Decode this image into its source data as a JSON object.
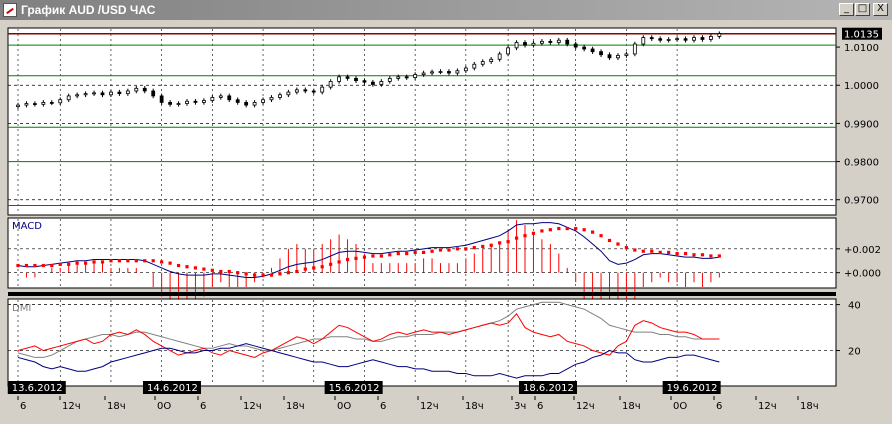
{
  "window": {
    "title": "График AUD /USD  ЧАС",
    "buttons": {
      "minimize": "_",
      "maximize": "□",
      "close": "X"
    }
  },
  "colors": {
    "price_level": "#8b0000",
    "gridline_green": "#008000",
    "candle": "#000000",
    "macd_line": "#000080",
    "signal_dots": "#ff0000",
    "histogram": "#ff0000",
    "dmi_adx": "#808080",
    "dmi_plus": "#ff0000",
    "dmi_minus": "#000080",
    "price_tag_bg": "#000000",
    "price_tag_text": "#ffffff"
  },
  "chart_data": [
    {
      "type": "candlestick",
      "symbol": "AUD/USD",
      "timeframe": "ЧАС",
      "y_ticks": [
        "1.0100",
        "1.0000",
        "0.9900",
        "0.9800",
        "0.9700"
      ],
      "ylim": [
        0.966,
        1.015
      ],
      "current_price": "1.0135",
      "closes": [
        0.9948,
        0.9952,
        0.995,
        0.9955,
        0.9954,
        0.9962,
        0.9972,
        0.9975,
        0.9978,
        0.998,
        0.9975,
        0.9982,
        0.9978,
        0.9985,
        0.9992,
        0.9985,
        0.9972,
        0.9955,
        0.995,
        0.9952,
        0.9958,
        0.9955,
        0.996,
        0.9968,
        0.9972,
        0.9962,
        0.9955,
        0.9948,
        0.9955,
        0.9962,
        0.9968,
        0.9975,
        0.9982,
        0.9988,
        0.9985,
        0.9982,
        0.9995,
        1.001,
        1.0022,
        1.0018,
        1.0012,
        1.0008,
        1.0002,
        1.001,
        1.0018,
        1.0022,
        1.002,
        1.0028,
        1.0032,
        1.0035,
        1.0036,
        1.0032,
        1.0038,
        1.0045,
        1.0055,
        1.0062,
        1.0068,
        1.0082,
        1.0098,
        1.0112,
        1.0105,
        1.011,
        1.0115,
        1.0112,
        1.0118,
        1.0108,
        1.01,
        1.0095,
        1.0088,
        1.008,
        1.0072,
        1.0078,
        1.0082,
        1.0108,
        1.0125,
        1.0122,
        1.0118,
        1.012,
        1.0122,
        1.0118,
        1.0125,
        1.012,
        1.0128,
        1.0135
      ],
      "date_labels": [
        "13.6.2012",
        "14.6.2012",
        "15.6.2012",
        "18.6.2012",
        "19.6.2012"
      ],
      "time_ticks": [
        "6",
        "12ч",
        "18ч",
        "0О",
        "6",
        "12ч",
        "18ч",
        "0О",
        "6",
        "12ч",
        "18ч",
        "3ч",
        "6",
        "12ч",
        "18ч",
        "0О",
        "6",
        "12ч",
        "18ч"
      ]
    },
    {
      "type": "line",
      "name": "MACD",
      "y_ticks": [
        "+0.002",
        "+0.000"
      ],
      "ylim": [
        -0.0012,
        0.0045
      ],
      "macd": [
        0.0006,
        0.0005,
        0.0005,
        0.0006,
        0.0007,
        0.0008,
        0.0009,
        0.001,
        0.001,
        0.0011,
        0.0011,
        0.0011,
        0.0011,
        0.0011,
        0.0011,
        0.001,
        0.0007,
        0.0004,
        0.0001,
        -0.0001,
        -0.0002,
        -0.0002,
        -0.0002,
        -0.0001,
        -0.0001,
        -0.0002,
        -0.0003,
        -0.0004,
        -0.0004,
        -0.0003,
        -0.0001,
        0.0002,
        0.0005,
        0.0007,
        0.0008,
        0.0009,
        0.0011,
        0.0014,
        0.0017,
        0.0018,
        0.0018,
        0.0017,
        0.0016,
        0.0016,
        0.0017,
        0.0018,
        0.0018,
        0.0019,
        0.002,
        0.0021,
        0.0021,
        0.0021,
        0.0022,
        0.0023,
        0.0025,
        0.0027,
        0.0029,
        0.0031,
        0.0035,
        0.004,
        0.0041,
        0.0041,
        0.0042,
        0.0042,
        0.0041,
        0.0038,
        0.0035,
        0.003,
        0.0024,
        0.0018,
        0.001,
        0.0007,
        0.0008,
        0.0011,
        0.0015,
        0.0016,
        0.0016,
        0.0015,
        0.0014,
        0.0013,
        0.0013,
        0.0012,
        0.0012,
        0.0013
      ],
      "signal": [
        0.0006,
        0.0006,
        0.0006,
        0.0006,
        0.0006,
        0.0007,
        0.0007,
        0.0008,
        0.0008,
        0.0009,
        0.0009,
        0.001,
        0.001,
        0.001,
        0.001,
        0.001,
        0.001,
        0.0009,
        0.0008,
        0.0006,
        0.0005,
        0.0004,
        0.0003,
        0.0002,
        0.0001,
        0.0001,
        0.0,
        -0.0001,
        -0.0002,
        -0.0002,
        -0.0002,
        -0.0001,
        0.0,
        0.0001,
        0.0003,
        0.0004,
        0.0005,
        0.0007,
        0.0009,
        0.0011,
        0.0012,
        0.0013,
        0.0014,
        0.0014,
        0.0015,
        0.0016,
        0.0016,
        0.0017,
        0.0017,
        0.0018,
        0.0019,
        0.0019,
        0.002,
        0.002,
        0.0021,
        0.0022,
        0.0023,
        0.0025,
        0.0026,
        0.0029,
        0.0031,
        0.0033,
        0.0035,
        0.0036,
        0.0037,
        0.0037,
        0.0037,
        0.0036,
        0.0034,
        0.0031,
        0.0027,
        0.0024,
        0.0021,
        0.0019,
        0.0018,
        0.0018,
        0.0017,
        0.0017,
        0.0016,
        0.0016,
        0.0015,
        0.0015,
        0.0014,
        0.0014
      ]
    },
    {
      "type": "line",
      "name": "DMI",
      "y_ticks": [
        "40",
        "20"
      ],
      "ylim": [
        5,
        42
      ],
      "adx": [
        19,
        18,
        17,
        17,
        18,
        20,
        22,
        24,
        25,
        26,
        27,
        27,
        26,
        27,
        28,
        28,
        27,
        26,
        25,
        24,
        23,
        22,
        21,
        21,
        22,
        23,
        22,
        22,
        21,
        20,
        20,
        21,
        22,
        23,
        24,
        25,
        25,
        26,
        26,
        26,
        25,
        25,
        24,
        24,
        25,
        26,
        26,
        27,
        27,
        27,
        28,
        28,
        28,
        29,
        30,
        31,
        32,
        33,
        35,
        38,
        39,
        40,
        41,
        41,
        41,
        40,
        39,
        38,
        36,
        34,
        31,
        30,
        29,
        28,
        28,
        28,
        27,
        27,
        26,
        26,
        25,
        25,
        25,
        25
      ],
      "plus_di": [
        20,
        21,
        22,
        20,
        21,
        22,
        23,
        24,
        25,
        23,
        24,
        27,
        28,
        27,
        29,
        27,
        24,
        22,
        20,
        18,
        19,
        20,
        21,
        19,
        18,
        20,
        19,
        18,
        17,
        19,
        20,
        22,
        24,
        26,
        25,
        23,
        25,
        28,
        31,
        30,
        28,
        26,
        24,
        25,
        27,
        28,
        27,
        28,
        29,
        28,
        28,
        27,
        28,
        29,
        30,
        31,
        32,
        31,
        32,
        36,
        30,
        28,
        27,
        26,
        27,
        24,
        23,
        22,
        20,
        19,
        18,
        22,
        24,
        31,
        33,
        32,
        30,
        29,
        28,
        28,
        27,
        25,
        25,
        25
      ],
      "minus_di": [
        17,
        16,
        15,
        13,
        12,
        13,
        12,
        11,
        11,
        12,
        13,
        15,
        16,
        17,
        18,
        19,
        20,
        21,
        21,
        20,
        19,
        19,
        20,
        20,
        21,
        21,
        22,
        23,
        22,
        21,
        20,
        19,
        18,
        17,
        16,
        15,
        15,
        14,
        13,
        13,
        14,
        15,
        16,
        15,
        14,
        13,
        13,
        12,
        12,
        11,
        11,
        11,
        10,
        10,
        9,
        9,
        9,
        10,
        9,
        8,
        9,
        9,
        9,
        10,
        10,
        12,
        14,
        15,
        17,
        18,
        20,
        19,
        19,
        16,
        15,
        15,
        16,
        17,
        17,
        18,
        18,
        17,
        16,
        15
      ]
    }
  ]
}
